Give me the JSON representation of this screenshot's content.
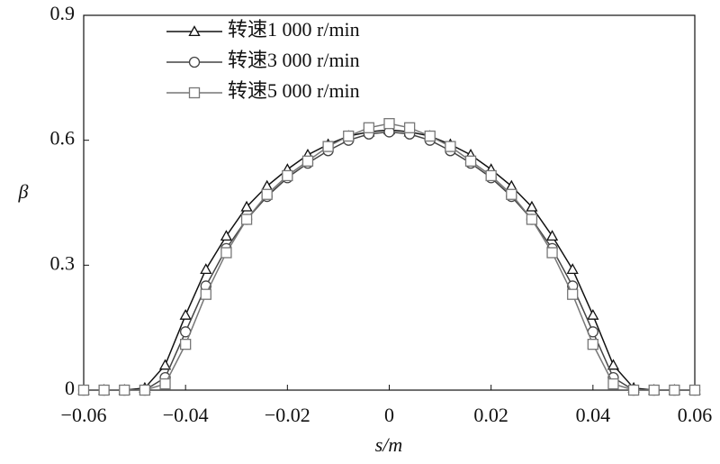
{
  "chart_data": {
    "type": "line",
    "xlabel": "s/m",
    "ylabel": "β",
    "x": [
      -0.06,
      -0.056,
      -0.052,
      -0.048,
      -0.044,
      -0.04,
      -0.036,
      -0.032,
      -0.028,
      -0.024,
      -0.02,
      -0.016,
      -0.012,
      -0.008,
      -0.004,
      0,
      0.004,
      0.008,
      0.012,
      0.016,
      0.02,
      0.024,
      0.028,
      0.032,
      0.036,
      0.04,
      0.044,
      0.048,
      0.052,
      0.056,
      0.06
    ],
    "series": [
      {
        "name": "转速1 000 r/min",
        "color": "#111111",
        "marker": "triangle",
        "values": [
          0,
          0,
          0,
          0.005,
          0.06,
          0.18,
          0.29,
          0.37,
          0.44,
          0.49,
          0.53,
          0.565,
          0.59,
          0.61,
          0.62,
          0.625,
          0.62,
          0.61,
          0.59,
          0.565,
          0.53,
          0.49,
          0.44,
          0.37,
          0.29,
          0.18,
          0.06,
          0.005,
          0,
          0,
          0
        ]
      },
      {
        "name": "转速3 000 r/min",
        "color": "#444444",
        "marker": "circle",
        "values": [
          0,
          0,
          0,
          0,
          0.03,
          0.14,
          0.25,
          0.34,
          0.41,
          0.465,
          0.51,
          0.545,
          0.575,
          0.6,
          0.615,
          0.62,
          0.615,
          0.6,
          0.575,
          0.545,
          0.51,
          0.465,
          0.41,
          0.34,
          0.25,
          0.14,
          0.03,
          0,
          0,
          0,
          0
        ]
      },
      {
        "name": "转速5 000 r/min",
        "color": "#777777",
        "marker": "square",
        "values": [
          0,
          0,
          0,
          0,
          0.015,
          0.11,
          0.23,
          0.33,
          0.41,
          0.47,
          0.515,
          0.55,
          0.585,
          0.61,
          0.63,
          0.64,
          0.63,
          0.61,
          0.585,
          0.55,
          0.515,
          0.47,
          0.41,
          0.33,
          0.23,
          0.11,
          0.015,
          0,
          0,
          0,
          0
        ]
      }
    ],
    "xlim": [
      -0.06,
      0.06
    ],
    "xticks": [
      {
        "value": -0.06,
        "label": "−0.06"
      },
      {
        "value": -0.04,
        "label": "−0.04"
      },
      {
        "value": -0.02,
        "label": "−0.02"
      },
      0,
      0.02,
      0.04,
      0.06
    ],
    "ylim": [
      0,
      0.9
    ],
    "yticks": [
      0,
      0.3,
      0.6,
      0.9
    ],
    "grid": false,
    "legend": "upper-left"
  }
}
